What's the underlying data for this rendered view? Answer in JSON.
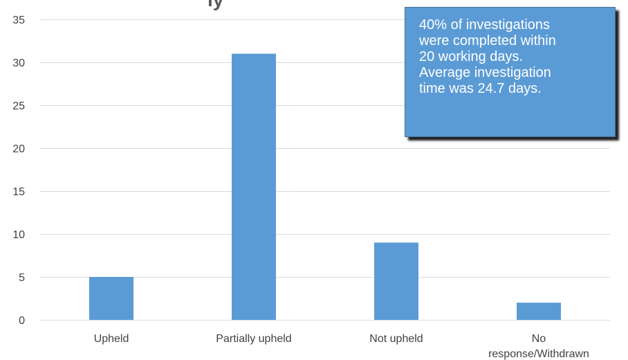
{
  "chart_data": {
    "type": "bar",
    "title": "",
    "title_fragment": "ly",
    "categories": [
      "Upheld",
      "Partially upheld",
      "Not upheld",
      "No response/Withdrawn"
    ],
    "category_label_lines": [
      [
        "Upheld"
      ],
      [
        "Partially upheld"
      ],
      [
        "Not upheld"
      ],
      [
        "No",
        "response/Withdrawn"
      ]
    ],
    "values": [
      5,
      31,
      9,
      2
    ],
    "ylim": [
      0,
      35
    ],
    "yticks": [
      0,
      5,
      10,
      15,
      20,
      25,
      30,
      35
    ],
    "xlabel": "",
    "ylabel": "",
    "grid": true,
    "bar_color": "#5b9bd5"
  },
  "callout": {
    "lines": [
      "40% of investigations",
      "were completed within",
      "20 working days.",
      "Average investigation",
      "time was 24.7 days."
    ],
    "background": "#5b9bd5"
  }
}
